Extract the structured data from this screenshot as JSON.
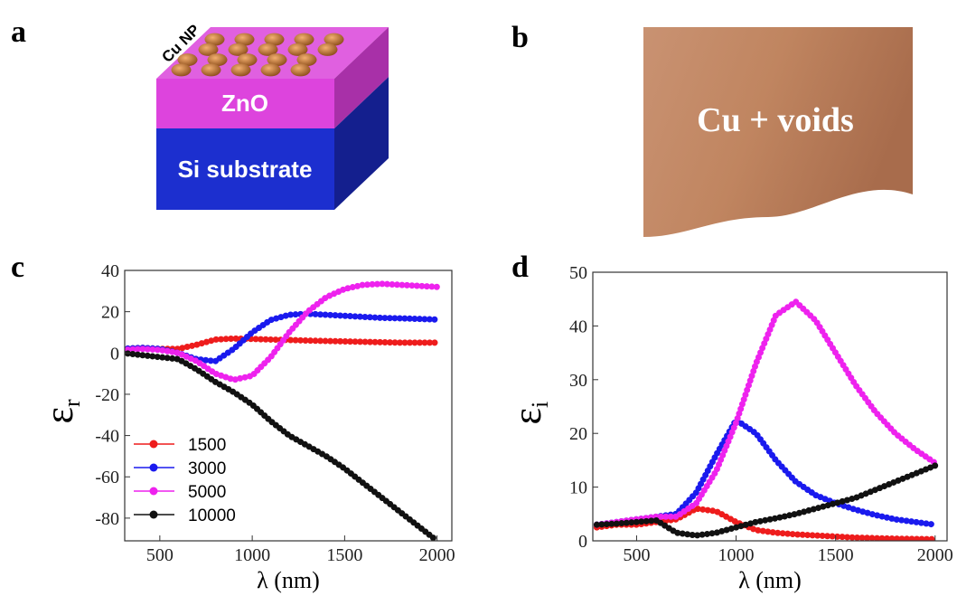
{
  "diagram_a": {
    "label": "a",
    "top_label": "Cu NP",
    "layers": [
      "ZnO",
      "Si substrate"
    ]
  },
  "diagram_b": {
    "label": "b",
    "text": "Cu + voids"
  },
  "chart_data": [
    {
      "type": "line",
      "panel_label": "c",
      "x_label": "λ (nm)",
      "y_label": "ε",
      "y_label_sub": "r",
      "x": [
        300,
        400,
        500,
        600,
        700,
        800,
        900,
        1000,
        1100,
        1200,
        1300,
        1400,
        1500,
        1600,
        1700,
        1800,
        1900,
        2000
      ],
      "xlim": [
        310,
        2080
      ],
      "xticks": [
        500,
        1000,
        1500,
        2000
      ],
      "ylim": [
        -91,
        40
      ],
      "yticks": [
        -80,
        -60,
        -40,
        -20,
        0,
        20,
        40
      ],
      "legend": "lower left",
      "series": [
        {
          "name": "1500",
          "color": "#ee1c1c",
          "values": [
            2,
            2.5,
            2,
            2,
            4,
            6.5,
            7,
            6.8,
            6.5,
            6.3,
            6,
            5.8,
            5.6,
            5.4,
            5.2,
            5,
            5,
            5
          ]
        },
        {
          "name": "3000",
          "color": "#1a1aee",
          "values": [
            2,
            2.5,
            2,
            0,
            -3,
            -4,
            2,
            10,
            16,
            18.5,
            19,
            18.5,
            18,
            17.5,
            17,
            16.8,
            16.5,
            16.2
          ]
        },
        {
          "name": "5000",
          "color": "#ee22ee",
          "values": [
            1.5,
            2,
            1.5,
            0,
            -4,
            -10,
            -13,
            -11,
            -2,
            10,
            20,
            27,
            31,
            33,
            33.5,
            33,
            32.5,
            32
          ]
        },
        {
          "name": "10000",
          "color": "#111111",
          "values": [
            0,
            -1,
            -2,
            -3,
            -8,
            -14,
            -19,
            -25,
            -33,
            -40,
            -45,
            -50,
            -56,
            -63,
            -70,
            -77,
            -84,
            -91
          ]
        }
      ]
    },
    {
      "type": "line",
      "panel_label": "d",
      "x_label": "λ (nm)",
      "y_label": "ε",
      "y_label_sub": "i",
      "x": [
        300,
        400,
        500,
        600,
        700,
        800,
        900,
        1000,
        1100,
        1200,
        1300,
        1400,
        1500,
        1600,
        1700,
        1800,
        1900,
        2000
      ],
      "xlim": [
        280,
        2060
      ],
      "xticks": [
        500,
        1000,
        1500,
        2000
      ],
      "ylim": [
        0,
        50
      ],
      "yticks": [
        0,
        10,
        20,
        30,
        40,
        50
      ],
      "series": [
        {
          "color": "#ee1c1c",
          "values": [
            2.5,
            3,
            3,
            3.5,
            4,
            6,
            5.5,
            3.5,
            2,
            1.5,
            1.2,
            1,
            0.8,
            0.6,
            0.5,
            0.4,
            0.35,
            0.3
          ]
        },
        {
          "color": "#1a1aee",
          "values": [
            3,
            3.5,
            4,
            4.5,
            5,
            9,
            16,
            22.5,
            20,
            15,
            11,
            8.5,
            7,
            5.8,
            4.8,
            4,
            3.5,
            3
          ]
        },
        {
          "color": "#ee22ee",
          "values": [
            3,
            3.5,
            4,
            4.5,
            4.5,
            7,
            13,
            22,
            33,
            42,
            44.5,
            41,
            35,
            29,
            24,
            20,
            17,
            14.5
          ]
        },
        {
          "color": "#111111",
          "values": [
            3,
            3.2,
            3.5,
            3.8,
            1.5,
            1,
            1.5,
            2.5,
            3.5,
            4.2,
            5,
            6,
            7,
            8,
            9.5,
            11,
            12.5,
            14
          ]
        }
      ]
    }
  ]
}
